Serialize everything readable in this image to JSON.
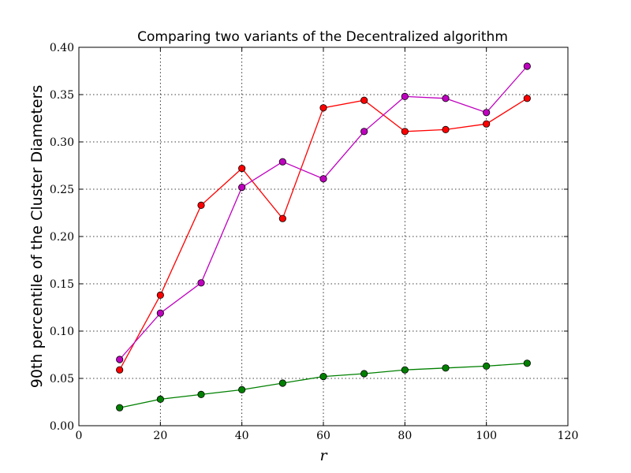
{
  "chart_data": {
    "type": "line",
    "title": "Comparing two variants of the Decentralized algorithm",
    "xlabel": "r",
    "ylabel": "90th percentile of the Cluster Diameters",
    "xlim": [
      0,
      120
    ],
    "ylim": [
      0,
      0.4
    ],
    "x_ticks": [
      "0",
      "20",
      "40",
      "60",
      "80",
      "100",
      "120"
    ],
    "y_ticks": [
      "0.00",
      "0.05",
      "0.10",
      "0.15",
      "0.20",
      "0.25",
      "0.30",
      "0.35",
      "0.40"
    ],
    "grid": true,
    "x": [
      10,
      20,
      30,
      40,
      50,
      60,
      70,
      80,
      90,
      100,
      110
    ],
    "series": [
      {
        "color": "#ff0000",
        "values": [
          0.059,
          0.138,
          0.233,
          0.272,
          0.219,
          0.336,
          0.344,
          0.311,
          0.313,
          0.319,
          0.346
        ]
      },
      {
        "color": "#bf00bf",
        "values": [
          0.07,
          0.119,
          0.151,
          0.252,
          0.279,
          0.261,
          0.311,
          0.348,
          0.346,
          0.331,
          0.38
        ]
      },
      {
        "color": "#008000",
        "values": [
          0.019,
          0.028,
          0.033,
          0.038,
          0.045,
          0.052,
          0.055,
          0.059,
          0.061,
          0.063,
          0.066
        ]
      }
    ]
  }
}
